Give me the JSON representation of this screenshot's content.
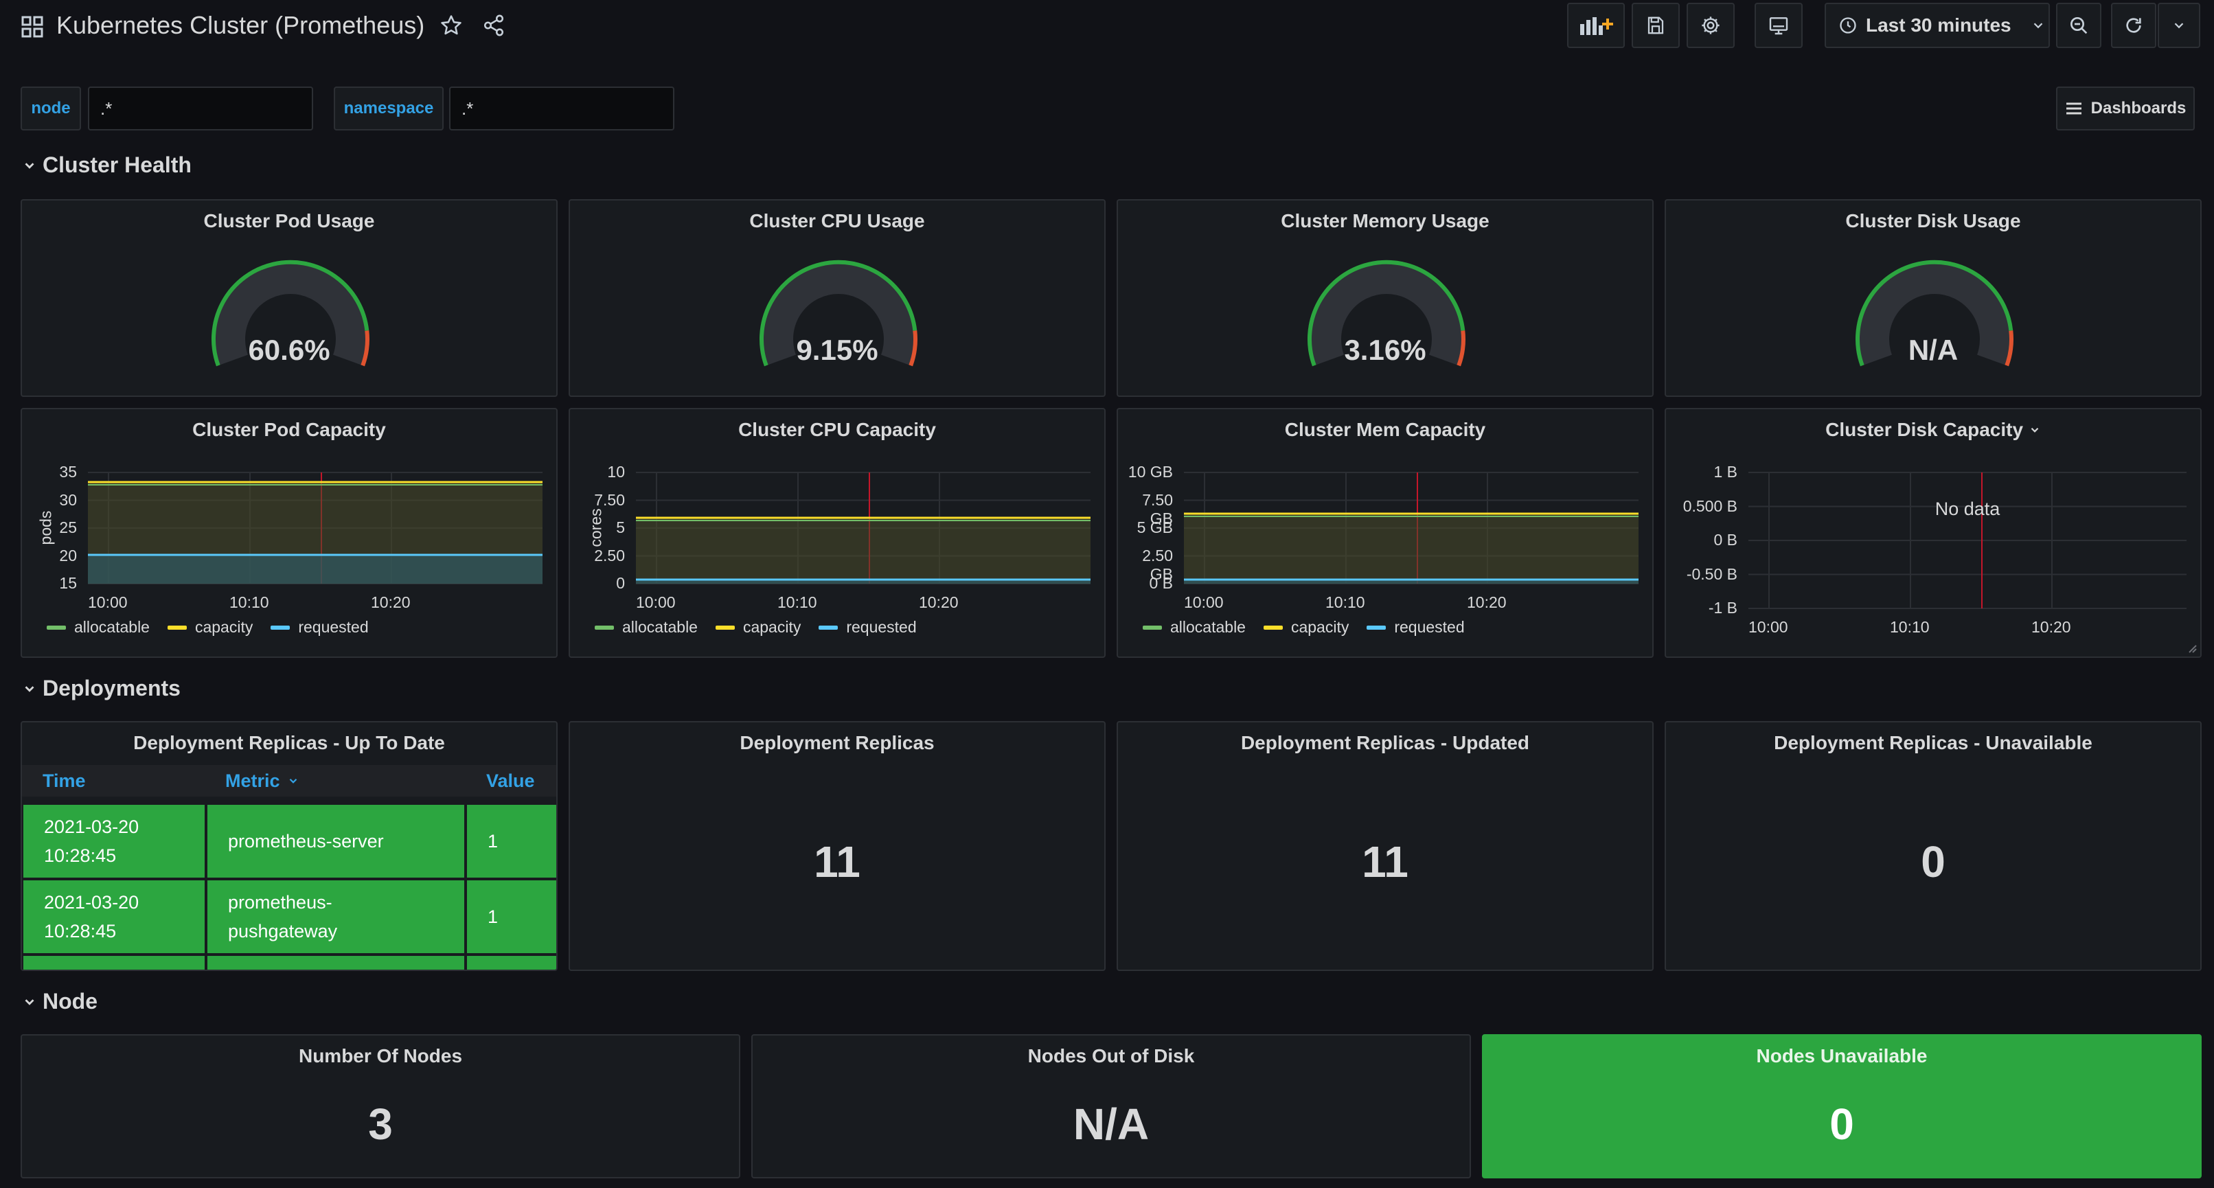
{
  "header": {
    "title": "Kubernetes Cluster (Prometheus)",
    "time_range": "Last 30 minutes"
  },
  "variables": [
    {
      "label": "node",
      "value": ".*"
    },
    {
      "label": "namespace",
      "value": ".*"
    }
  ],
  "dashboards_button": "Dashboards",
  "rows": {
    "cluster_health": "Cluster Health",
    "deployments": "Deployments",
    "node": "Node"
  },
  "gauges": [
    {
      "title": "Cluster Pod Usage",
      "value": "60.6%",
      "fraction": 0.606
    },
    {
      "title": "Cluster CPU Usage",
      "value": "9.15%",
      "fraction": 0.0915
    },
    {
      "title": "Cluster Memory Usage",
      "value": "3.16%",
      "fraction": 0.0316
    },
    {
      "title": "Cluster Disk Usage",
      "value": "N/A",
      "fraction": 0
    }
  ],
  "capacity_panels": [
    {
      "title": "Cluster Pod Capacity",
      "ylabel": "pods",
      "yticks": [
        "35",
        "30",
        "25",
        "20",
        "15"
      ],
      "xticks": [
        "10:00",
        "10:10",
        "10:20"
      ],
      "legend": [
        "allocatable",
        "capacity",
        "requested"
      ]
    },
    {
      "title": "Cluster CPU Capacity",
      "ylabel": "cores",
      "yticks": [
        "10",
        "7.50",
        "5",
        "2.50",
        "0"
      ],
      "xticks": [
        "10:00",
        "10:10",
        "10:20"
      ],
      "legend": [
        "allocatable",
        "capacity",
        "requested"
      ]
    },
    {
      "title": "Cluster Mem Capacity",
      "ylabel": "",
      "yticks": [
        "10 GB",
        "7.50 GB",
        "5 GB",
        "2.50 GB",
        "0 B"
      ],
      "xticks": [
        "10:00",
        "10:10",
        "10:20"
      ],
      "legend": [
        "allocatable",
        "capacity",
        "requested"
      ]
    },
    {
      "title": "Cluster Disk Capacity",
      "ylabel": "",
      "yticks": [
        "1 B",
        "0.500 B",
        "0 B",
        "-0.50 B",
        "-1 B"
      ],
      "xticks": [
        "10:00",
        "10:10",
        "10:20"
      ],
      "legend": [],
      "no_data": "No data"
    }
  ],
  "series_colors": {
    "allocatable": "#73bf69",
    "capacity": "#fade2a",
    "requested": "#5794f2"
  },
  "deploy_table": {
    "title": "Deployment Replicas - Up To Date",
    "headers": [
      "Time",
      "Metric",
      "Value"
    ],
    "rows": [
      {
        "time": "2021-03-20 10:28:45",
        "metric": "prometheus-server",
        "value": "1"
      },
      {
        "time": "2021-03-20 10:28:45",
        "metric": "prometheus-pushgateway",
        "value": "1"
      }
    ]
  },
  "deploy_stats": [
    {
      "title": "Deployment Replicas",
      "value": "11"
    },
    {
      "title": "Deployment Replicas - Updated",
      "value": "11"
    },
    {
      "title": "Deployment Replicas - Unavailable",
      "value": "0"
    }
  ],
  "node_stats": [
    {
      "title": "Number Of Nodes",
      "value": "3"
    },
    {
      "title": "Nodes Out of Disk",
      "value": "N/A"
    },
    {
      "title": "Nodes Unavailable",
      "value": "0"
    }
  ]
}
